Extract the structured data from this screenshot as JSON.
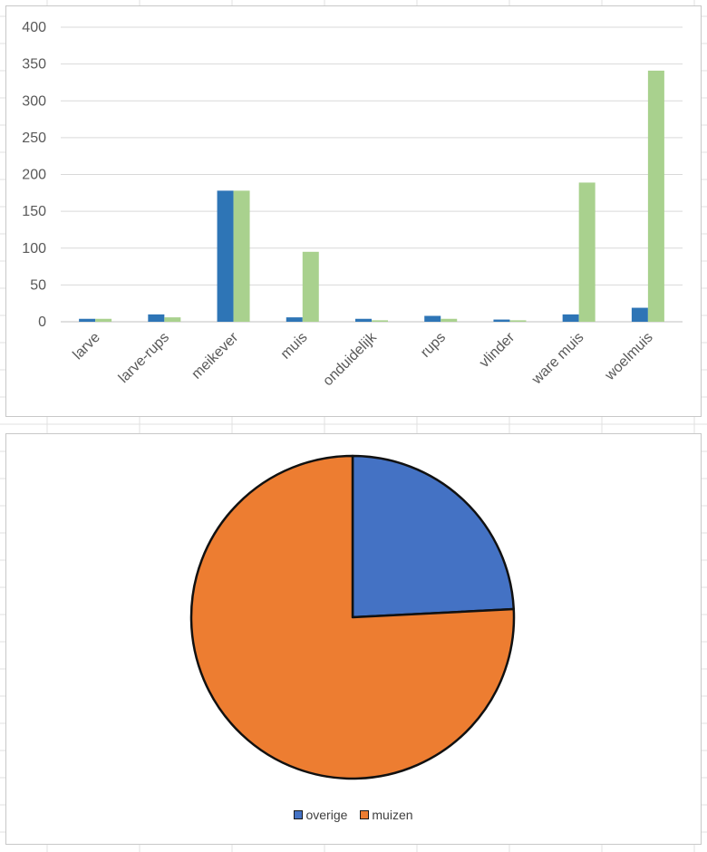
{
  "chart_data": [
    {
      "type": "bar",
      "categories": [
        "larve",
        "larve-rups",
        "meikever",
        "muis",
        "onduidelijk",
        "rups",
        "vlinder",
        "ware muis",
        "woelmuis"
      ],
      "series": [
        {
          "color": "#2e75b6",
          "values": [
            4,
            10,
            178,
            6,
            4,
            8,
            3,
            10,
            19
          ]
        },
        {
          "color": "#a9d18e",
          "values": [
            4,
            6,
            178,
            95,
            2,
            4,
            2,
            189,
            341
          ]
        }
      ],
      "yticks": [
        "0",
        "50",
        "100",
        "150",
        "200",
        "250",
        "300",
        "350",
        "400"
      ],
      "ylim": [
        0,
        400
      ],
      "grid": true,
      "legend": "none"
    },
    {
      "type": "pie",
      "slices": [
        {
          "label": "overige",
          "value": 24.2,
          "color": "#4472c4"
        },
        {
          "label": "muizen",
          "value": 75.8,
          "color": "#ed7d31"
        }
      ],
      "legend": "bottom"
    }
  ]
}
